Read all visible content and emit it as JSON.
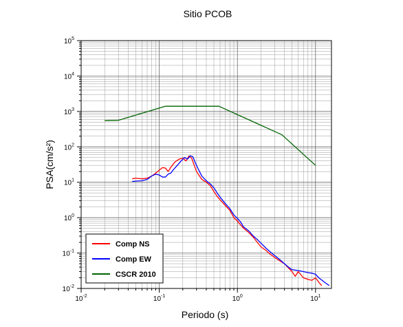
{
  "chart_data": {
    "type": "line",
    "title": "Sitio PCOB",
    "xlabel": "Periodo (s)",
    "ylabel": "PSA(cm/s²)",
    "x_scale": "log",
    "y_scale": "log",
    "xlim": [
      0.01,
      16
    ],
    "ylim": [
      0.01,
      100000
    ],
    "grid": true,
    "legend_position": "bottom-left",
    "x_ticks": [
      {
        "base": "10",
        "exp": "-2"
      },
      {
        "base": "10",
        "exp": "-1"
      },
      {
        "base": "10",
        "exp": "0"
      },
      {
        "base": "10",
        "exp": "1"
      }
    ],
    "y_ticks": [
      {
        "base": "10",
        "exp": "-2"
      },
      {
        "base": "10",
        "exp": "-1"
      },
      {
        "base": "10",
        "exp": "0"
      },
      {
        "base": "10",
        "exp": "1"
      },
      {
        "base": "10",
        "exp": "2"
      },
      {
        "base": "10",
        "exp": "3"
      },
      {
        "base": "10",
        "exp": "4"
      },
      {
        "base": "10",
        "exp": "5"
      }
    ],
    "series": [
      {
        "name": "Comp NS",
        "color": "#ff0000",
        "points": [
          [
            0.045,
            12.5
          ],
          [
            0.05,
            13
          ],
          [
            0.06,
            12.5
          ],
          [
            0.07,
            13
          ],
          [
            0.08,
            15
          ],
          [
            0.09,
            18
          ],
          [
            0.1,
            22
          ],
          [
            0.11,
            26
          ],
          [
            0.12,
            25
          ],
          [
            0.13,
            20
          ],
          [
            0.14,
            26
          ],
          [
            0.15,
            32
          ],
          [
            0.16,
            38
          ],
          [
            0.18,
            45
          ],
          [
            0.2,
            48
          ],
          [
            0.22,
            40
          ],
          [
            0.24,
            55
          ],
          [
            0.26,
            48
          ],
          [
            0.28,
            30
          ],
          [
            0.3,
            20
          ],
          [
            0.35,
            12
          ],
          [
            0.4,
            10
          ],
          [
            0.45,
            8
          ],
          [
            0.5,
            5.5
          ],
          [
            0.55,
            4
          ],
          [
            0.6,
            3.2
          ],
          [
            0.7,
            2.2
          ],
          [
            0.8,
            1.6
          ],
          [
            0.9,
            1.0
          ],
          [
            1.0,
            0.8
          ],
          [
            1.1,
            0.62
          ],
          [
            1.2,
            0.5
          ],
          [
            1.4,
            0.38
          ],
          [
            1.6,
            0.28
          ],
          [
            1.8,
            0.2
          ],
          [
            2.0,
            0.15
          ],
          [
            2.3,
            0.12
          ],
          [
            2.6,
            0.095
          ],
          [
            3.0,
            0.075
          ],
          [
            3.5,
            0.06
          ],
          [
            4.0,
            0.05
          ],
          [
            4.5,
            0.038
          ],
          [
            5.0,
            0.03
          ],
          [
            5.5,
            0.022
          ],
          [
            6.0,
            0.03
          ],
          [
            7.0,
            0.02
          ],
          [
            8.0,
            0.018
          ],
          [
            9.0,
            0.017
          ],
          [
            10.0,
            0.02
          ],
          [
            11.0,
            0.015
          ],
          [
            12.0,
            0.012
          ]
        ]
      },
      {
        "name": "Comp EW",
        "color": "#0000ff",
        "points": [
          [
            0.045,
            10.5
          ],
          [
            0.05,
            10.8
          ],
          [
            0.06,
            11
          ],
          [
            0.07,
            12
          ],
          [
            0.08,
            15
          ],
          [
            0.09,
            17
          ],
          [
            0.1,
            16
          ],
          [
            0.11,
            14
          ],
          [
            0.12,
            14
          ],
          [
            0.13,
            17
          ],
          [
            0.14,
            18
          ],
          [
            0.15,
            22
          ],
          [
            0.17,
            30
          ],
          [
            0.19,
            40
          ],
          [
            0.21,
            50
          ],
          [
            0.23,
            45
          ],
          [
            0.25,
            56
          ],
          [
            0.27,
            52
          ],
          [
            0.29,
            35
          ],
          [
            0.32,
            22
          ],
          [
            0.35,
            15
          ],
          [
            0.4,
            11
          ],
          [
            0.45,
            9
          ],
          [
            0.5,
            7
          ],
          [
            0.55,
            5
          ],
          [
            0.6,
            3.8
          ],
          [
            0.7,
            2.5
          ],
          [
            0.8,
            1.8
          ],
          [
            0.9,
            1.2
          ],
          [
            1.0,
            0.95
          ],
          [
            1.1,
            0.75
          ],
          [
            1.2,
            0.55
          ],
          [
            1.4,
            0.42
          ],
          [
            1.6,
            0.3
          ],
          [
            1.8,
            0.24
          ],
          [
            2.0,
            0.19
          ],
          [
            2.3,
            0.14
          ],
          [
            2.6,
            0.11
          ],
          [
            3.0,
            0.085
          ],
          [
            3.5,
            0.065
          ],
          [
            4.0,
            0.05
          ],
          [
            4.5,
            0.04
          ],
          [
            5.0,
            0.034
          ],
          [
            6.0,
            0.032
          ],
          [
            7.0,
            0.03
          ],
          [
            8.0,
            0.028
          ],
          [
            9.0,
            0.027
          ],
          [
            10.0,
            0.025
          ],
          [
            11.0,
            0.02
          ],
          [
            13.0,
            0.015
          ],
          [
            15.0,
            0.012
          ]
        ]
      },
      {
        "name": "CSCR 2010",
        "color": "#006400",
        "points": [
          [
            0.02,
            550
          ],
          [
            0.03,
            560
          ],
          [
            0.12,
            1400
          ],
          [
            0.58,
            1400
          ],
          [
            3.7,
            220
          ],
          [
            10.0,
            30
          ]
        ]
      }
    ]
  }
}
